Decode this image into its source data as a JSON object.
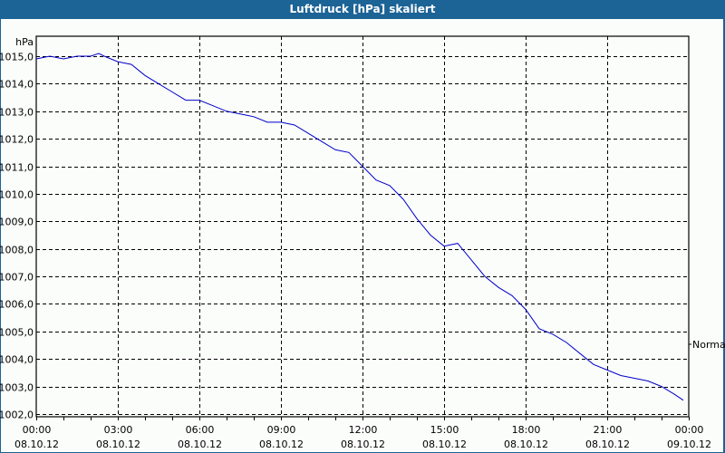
{
  "window": {
    "title": "Luftdruck [hPa] skaliert"
  },
  "chart_data": {
    "type": "line",
    "title": "Luftdruck [hPa] skaliert",
    "ylabel": "hPa",
    "xlabel": "",
    "ylim": [
      1002.0,
      1015.0
    ],
    "grid": true,
    "y_ticks": [
      "1015,0",
      "1014,0",
      "1013,0",
      "1012,0",
      "1011,0",
      "1010,0",
      "1009,0",
      "1008,0",
      "1007,0",
      "1006,0",
      "1005,0",
      "1004,0",
      "1003,0",
      "1002,0"
    ],
    "x_ticks": [
      {
        "time": "00:00",
        "date": "08.10.12"
      },
      {
        "time": "03:00",
        "date": "08.10.12"
      },
      {
        "time": "06:00",
        "date": "08.10.12"
      },
      {
        "time": "09:00",
        "date": "08.10.12"
      },
      {
        "time": "12:00",
        "date": "08.10.12"
      },
      {
        "time": "15:00",
        "date": "08.10.12"
      },
      {
        "time": "18:00",
        "date": "08.10.12"
      },
      {
        "time": "21:00",
        "date": "08.10.12"
      },
      {
        "time": "00:00",
        "date": "09.10.12"
      }
    ],
    "annotation": "Normal",
    "series": [
      {
        "name": "Luftdruck",
        "color": "#0000c8",
        "x_hours": [
          0,
          0.5,
          1,
          1.5,
          2,
          2.3,
          2.5,
          3,
          3.5,
          4,
          4.5,
          5,
          5.5,
          6,
          6.5,
          7,
          7.5,
          8,
          8.5,
          9,
          9.5,
          10,
          10.5,
          11,
          11.5,
          12,
          12.5,
          13,
          13.5,
          14,
          14.5,
          15,
          15.5,
          16,
          16.5,
          17,
          17.5,
          18,
          18.5,
          19,
          19.5,
          20,
          20.5,
          21,
          21.5,
          22,
          22.5,
          23,
          23.5,
          23.8
        ],
        "values": [
          1014.9,
          1015.0,
          1014.9,
          1015.0,
          1015.0,
          1015.1,
          1015.0,
          1014.8,
          1014.7,
          1014.3,
          1014.0,
          1013.7,
          1013.4,
          1013.4,
          1013.2,
          1013.0,
          1012.9,
          1012.8,
          1012.6,
          1012.6,
          1012.5,
          1012.2,
          1011.9,
          1011.6,
          1011.5,
          1011.0,
          1010.5,
          1010.3,
          1009.8,
          1009.1,
          1008.5,
          1008.1,
          1008.2,
          1007.6,
          1007.0,
          1006.6,
          1006.3,
          1005.8,
          1005.1,
          1004.9,
          1004.6,
          1004.2,
          1003.8,
          1003.6,
          1003.4,
          1003.3,
          1003.2,
          1003.0,
          1002.7,
          1002.5
        ]
      }
    ]
  }
}
